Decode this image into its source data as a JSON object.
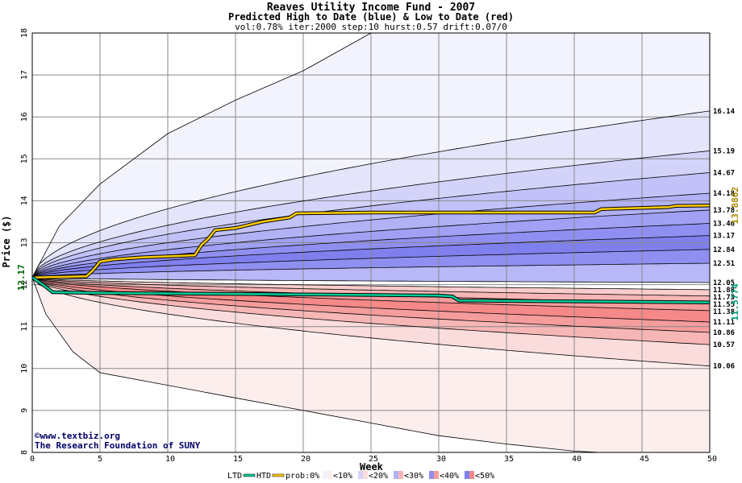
{
  "chart_data": {
    "type": "area",
    "title": "Reaves Utility Income Fund - 2007",
    "subtitle": "Predicted High to Date (blue) &  Low to Date (red)",
    "params": "vol:0.78% iter:2000 step:10 hurst:0.57 drift:0.07/0",
    "xlabel": "Week",
    "ylabel": "Price ($)",
    "xlim": [
      0,
      50
    ],
    "ylim": [
      8,
      18
    ],
    "xticks": [
      "0",
      "5",
      "10",
      "15",
      "20",
      "25",
      "30",
      "35",
      "40",
      "45",
      "50"
    ],
    "yticks": [
      "8",
      "9",
      "10",
      "11",
      "12",
      "13",
      "14",
      "15",
      "16",
      "17",
      "18"
    ],
    "start_price": "12.17",
    "start_value": 12.17,
    "grid": true,
    "high_quantiles": [
      {
        "label": "16.14",
        "value": 16.14
      },
      {
        "label": "15.19",
        "value": 15.19
      },
      {
        "label": "14.67",
        "value": 14.67
      },
      {
        "label": "14.18",
        "value": 14.18
      },
      {
        "label": "13.78",
        "value": 13.78
      },
      {
        "label": "13.46",
        "value": 13.46
      },
      {
        "label": "13.17",
        "value": 13.17
      },
      {
        "label": "12.84",
        "value": 12.84
      },
      {
        "label": "12.51",
        "value": 12.51
      },
      {
        "label": "12.05",
        "value": 12.05
      }
    ],
    "low_quantiles": [
      {
        "label": "11.88",
        "value": 11.88
      },
      {
        "label": "11.73",
        "value": 11.73
      },
      {
        "label": "11.55",
        "value": 11.55
      },
      {
        "label": "11.38",
        "value": 11.38
      },
      {
        "label": "11.11",
        "value": 11.11
      },
      {
        "label": "10.86",
        "value": 10.86
      },
      {
        "label": "10.57",
        "value": 10.57
      },
      {
        "label": "10.06",
        "value": 10.06
      }
    ],
    "high_band_colors": [
      "#f3f3fe",
      "#e4e4fb",
      "#d3d3fa",
      "#c2c2f8",
      "#b1b1f6",
      "#a0a0f4",
      "#8f8ff1",
      "#7f7fee",
      "#8f8ff1",
      "#b8b8f8",
      "#dcdcfc"
    ],
    "low_band_colors": [
      "#fbe0e0",
      "#f9cccc",
      "#f7b6b6",
      "#f59c9c",
      "#f58888",
      "#f59c9c",
      "#f7b6b6",
      "#fbdcdc",
      "#fdeeee"
    ],
    "outer_bounds": {
      "upper": [
        [
          0,
          12.17
        ],
        [
          2,
          13.4
        ],
        [
          5,
          14.4
        ],
        [
          10,
          15.6
        ],
        [
          15,
          16.4
        ],
        [
          20,
          17.1
        ],
        [
          25,
          18.0
        ]
      ],
      "lower": [
        [
          0,
          12.17
        ],
        [
          1,
          11.3
        ],
        [
          3,
          10.4
        ],
        [
          5,
          9.9
        ],
        [
          10,
          9.6
        ],
        [
          15,
          9.3
        ],
        [
          20,
          9.0
        ],
        [
          25,
          8.7
        ],
        [
          30,
          8.4
        ],
        [
          35,
          8.2
        ],
        [
          40,
          8.03
        ],
        [
          45,
          7.95
        ],
        [
          50,
          7.9
        ]
      ]
    },
    "htd_series": {
      "name": "HTD",
      "color": "#ffcc00",
      "end_label": "13.8862",
      "points": [
        [
          0,
          12.17
        ],
        [
          4,
          12.2
        ],
        [
          4.5,
          12.35
        ],
        [
          5,
          12.55
        ],
        [
          6,
          12.6
        ],
        [
          8,
          12.65
        ],
        [
          12,
          12.7
        ],
        [
          12.5,
          12.95
        ],
        [
          13,
          13.1
        ],
        [
          13.5,
          13.3
        ],
        [
          15,
          13.35
        ],
        [
          17,
          13.5
        ],
        [
          19,
          13.6
        ],
        [
          19.5,
          13.7
        ],
        [
          25,
          13.72
        ],
        [
          41.5,
          13.72
        ],
        [
          42,
          13.8
        ],
        [
          47,
          13.85
        ],
        [
          47.5,
          13.88
        ],
        [
          50,
          13.8862
        ]
      ]
    },
    "ltd_series": {
      "name": "LTD",
      "color": "#00cc99",
      "end_label": "11.5774",
      "points": [
        [
          0,
          12.17
        ],
        [
          1,
          11.95
        ],
        [
          1.5,
          11.82
        ],
        [
          5,
          11.8
        ],
        [
          15,
          11.78
        ],
        [
          30,
          11.74
        ],
        [
          31,
          11.72
        ],
        [
          31.5,
          11.62
        ],
        [
          40,
          11.6
        ],
        [
          50,
          11.5774
        ]
      ]
    },
    "credit": [
      "©www.textbiz.org",
      "The Research Foundation of SUNY"
    ],
    "legend": {
      "ltd": "LTD",
      "htd": "HTD",
      "prob": "prob:0%",
      "items": [
        {
          "label": "<10%",
          "blue": "#f3f3fe",
          "red": "#fdeeee"
        },
        {
          "label": "<20%",
          "blue": "#d3d3fa",
          "red": "#fbdcdc"
        },
        {
          "label": "<30%",
          "blue": "#b1b1f6",
          "red": "#f7b6b6"
        },
        {
          "label": "<40%",
          "blue": "#8f8ff1",
          "red": "#f59c9c"
        },
        {
          "label": "<50%",
          "blue": "#7f7fee",
          "red": "#f58888"
        }
      ]
    }
  }
}
